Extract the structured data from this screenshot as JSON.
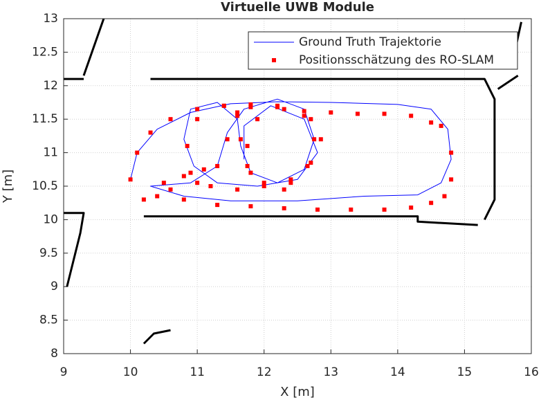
{
  "chart_data": {
    "type": "line",
    "title": "Virtuelle UWB Module",
    "xlabel": "X [m]",
    "ylabel": "Y [m]",
    "xlim": [
      9,
      16
    ],
    "ylim": [
      8,
      13
    ],
    "xticks": [
      9,
      10,
      11,
      12,
      13,
      14,
      15,
      16
    ],
    "yticks": [
      8,
      8.5,
      9,
      9.5,
      10,
      10.5,
      11,
      11.5,
      12,
      12.5,
      13
    ],
    "grid": true,
    "legend": "northeast",
    "series": [
      {
        "name": "Ground Truth Trajektorie",
        "color": "#0000ff",
        "mode": "line",
        "x": [
          10.0,
          10.1,
          10.4,
          10.9,
          11.5,
          12.2,
          13.0,
          14.0,
          14.5,
          14.75,
          14.8,
          14.65,
          14.3,
          13.5,
          12.5,
          11.5,
          10.8,
          10.3,
          10.9,
          11.3,
          11.45,
          11.7,
          12.2,
          12.6,
          12.75,
          12.6,
          12.2,
          11.8,
          11.65,
          11.6,
          11.3,
          10.9,
          10.8,
          10.95,
          11.3,
          11.9,
          12.5,
          12.8,
          12.6,
          12.1,
          11.7,
          11.7
        ],
        "y": [
          10.6,
          11.0,
          11.35,
          11.6,
          11.73,
          11.76,
          11.75,
          11.72,
          11.65,
          11.35,
          10.9,
          10.55,
          10.37,
          10.35,
          10.28,
          10.28,
          10.35,
          10.5,
          10.55,
          10.8,
          11.3,
          11.65,
          11.8,
          11.65,
          11.2,
          10.75,
          10.55,
          10.7,
          11.1,
          11.5,
          11.75,
          11.65,
          11.2,
          10.8,
          10.55,
          10.5,
          10.6,
          11.0,
          11.5,
          11.7,
          11.4,
          10.9
        ]
      },
      {
        "name": "Positionsschätzung des RO-SLAM",
        "color": "#ff0000",
        "mode": "markers",
        "x": [
          10.0,
          10.1,
          10.3,
          10.6,
          11.0,
          11.4,
          11.8,
          12.2,
          12.6,
          13.0,
          13.4,
          13.8,
          14.2,
          14.5,
          14.65,
          14.8,
          14.8,
          14.7,
          14.5,
          14.2,
          13.8,
          13.3,
          12.8,
          12.3,
          11.8,
          11.3,
          10.8,
          10.4,
          10.2,
          10.6,
          11.0,
          11.3,
          11.45,
          11.6,
          11.8,
          12.2,
          12.6,
          12.75,
          12.65,
          12.4,
          12.0,
          11.75,
          11.65,
          11.6,
          11.4,
          11.0,
          10.85,
          10.9,
          11.2,
          11.6,
          12.0,
          12.4,
          12.7,
          12.85,
          12.7,
          12.3,
          11.9,
          11.75,
          11.8,
          12.3,
          10.5,
          10.8,
          11.1
        ],
        "y": [
          10.6,
          11.0,
          11.3,
          11.5,
          11.65,
          11.7,
          11.72,
          11.68,
          11.62,
          11.6,
          11.58,
          11.58,
          11.55,
          11.45,
          11.4,
          11.0,
          10.6,
          10.35,
          10.25,
          10.18,
          10.15,
          10.15,
          10.15,
          10.17,
          10.2,
          10.22,
          10.3,
          10.35,
          10.3,
          10.45,
          10.55,
          10.8,
          11.2,
          11.55,
          11.68,
          11.7,
          11.55,
          11.2,
          10.8,
          10.55,
          10.55,
          10.8,
          11.2,
          11.6,
          11.7,
          11.5,
          11.1,
          10.7,
          10.5,
          10.45,
          10.5,
          10.6,
          10.85,
          11.2,
          11.5,
          11.65,
          11.5,
          11.1,
          10.7,
          10.45,
          10.55,
          10.65,
          10.75
        ]
      },
      {
        "color": "#000000",
        "mode": "line",
        "x": [
          9.3,
          9.6,
          null,
          9.0,
          9.3,
          null,
          10.3,
          15.3,
          15.45,
          15.45,
          15.3,
          null,
          15.2,
          14.3,
          14.3,
          10.2,
          null,
          9.0,
          9.3,
          9.25,
          9.05,
          null,
          10.2,
          10.35,
          10.6,
          null,
          15.5,
          15.8,
          null,
          15.75,
          15.85
        ],
        "y": [
          12.15,
          13.0,
          null,
          12.1,
          12.1,
          null,
          12.1,
          12.1,
          11.8,
          10.3,
          10.0,
          null,
          9.92,
          9.97,
          10.05,
          10.05,
          null,
          10.1,
          10.1,
          9.8,
          9.0,
          null,
          8.15,
          8.3,
          8.35,
          null,
          11.95,
          12.15,
          null,
          12.5,
          12.95
        ]
      }
    ]
  }
}
